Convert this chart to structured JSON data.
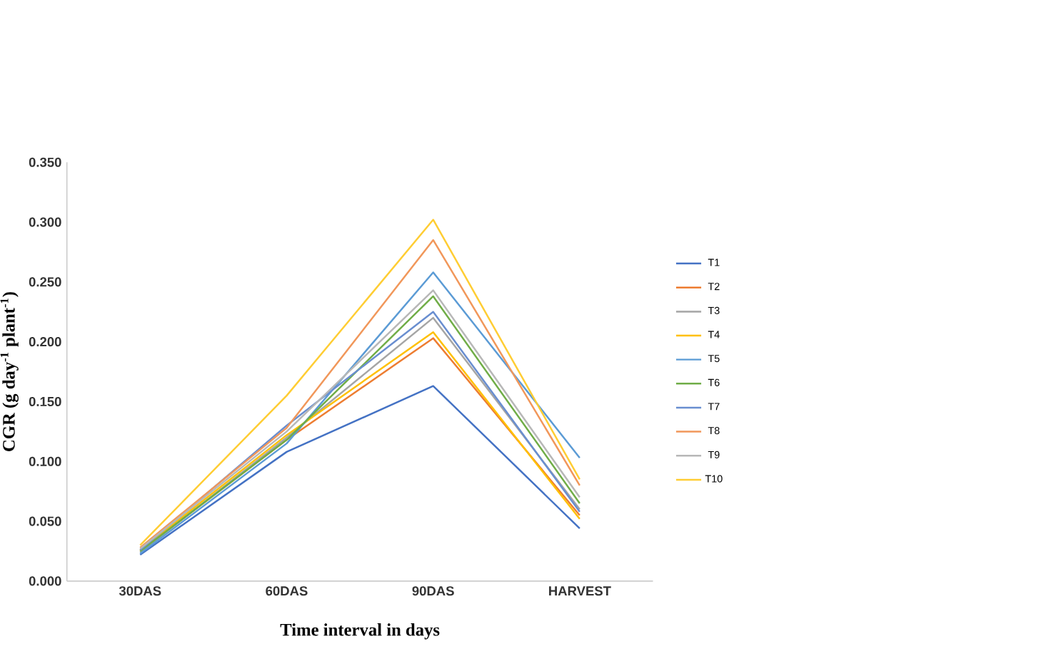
{
  "chart_data": {
    "type": "line",
    "xlabel": "Time interval  in days",
    "ylabel": "CGR (g day$^{-1}$ plant$^{-1}$)",
    "categories": [
      "30DAS",
      "60DAS",
      "90DAS",
      "HARVEST"
    ],
    "series": [
      {
        "name": "T1",
        "color": "#4472c4",
        "values": [
          0.022,
          0.108,
          0.163,
          0.044
        ]
      },
      {
        "name": "T2",
        "color": "#ed7d31",
        "values": [
          0.025,
          0.118,
          0.203,
          0.055
        ]
      },
      {
        "name": "T3",
        "color": "#a5a5a5",
        "values": [
          0.024,
          0.12,
          0.22,
          0.06
        ]
      },
      {
        "name": "T4",
        "color": "#ffc000",
        "values": [
          0.026,
          0.122,
          0.208,
          0.052
        ]
      },
      {
        "name": "T5",
        "color": "#5b9bd5",
        "values": [
          0.023,
          0.115,
          0.258,
          0.103
        ]
      },
      {
        "name": "T6",
        "color": "#70ad47",
        "values": [
          0.025,
          0.118,
          0.238,
          0.065
        ]
      },
      {
        "name": "T7",
        "color": "#698ed0",
        "values": [
          0.026,
          0.13,
          0.225,
          0.058
        ]
      },
      {
        "name": "T8",
        "color": "#f1975a",
        "values": [
          0.028,
          0.128,
          0.285,
          0.08
        ]
      },
      {
        "name": "T9",
        "color": "#b7b7b7",
        "values": [
          0.027,
          0.125,
          0.243,
          0.07
        ]
      },
      {
        "name": "T10",
        "color": "#ffcd33",
        "values": [
          0.03,
          0.155,
          0.302,
          0.085
        ]
      }
    ],
    "ylim": [
      0,
      0.35
    ],
    "yticks": [
      {
        "value": 0,
        "label": "0.000"
      },
      {
        "value": 0.05,
        "label": "0.050"
      },
      {
        "value": 0.1,
        "label": "0.100"
      },
      {
        "value": 0.15,
        "label": "0.150"
      },
      {
        "value": 0.2,
        "label": "0.200"
      },
      {
        "value": 0.25,
        "label": "0.250"
      },
      {
        "value": 0.3,
        "label": "0.300"
      },
      {
        "value": 0.35,
        "label": "0.350"
      }
    ],
    "legend": "right",
    "grid": false,
    "marker": "none",
    "line_style": "solid"
  }
}
